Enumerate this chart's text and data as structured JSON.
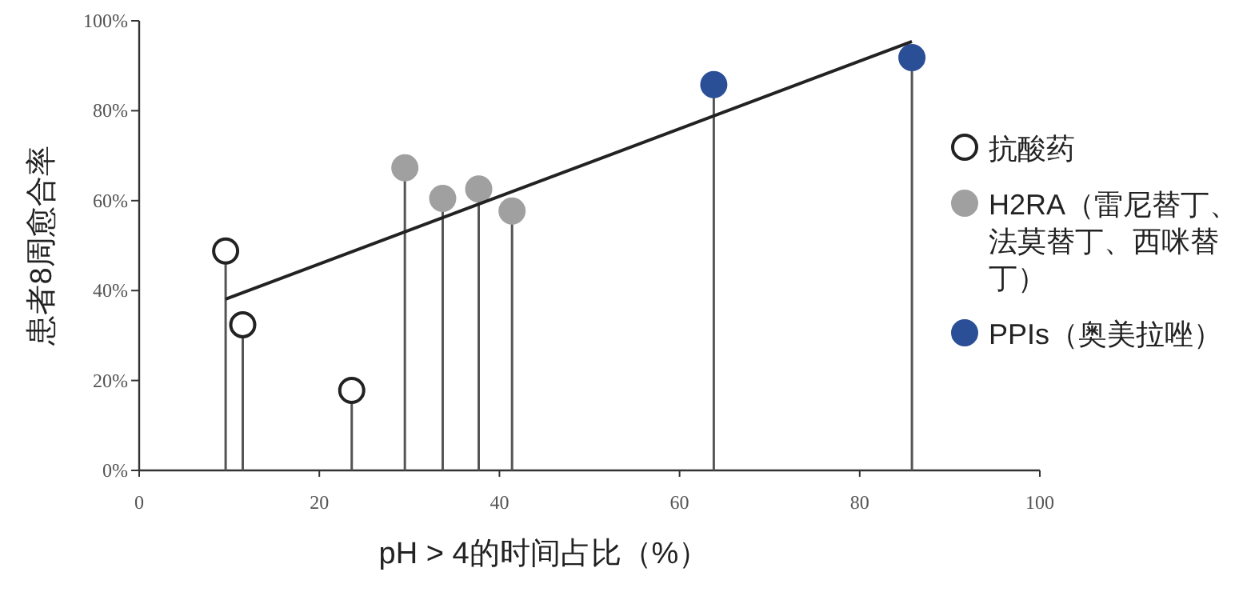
{
  "chart_data": {
    "type": "lollipop",
    "xlabel": "pH > 4的时间占比（%）",
    "ylabel": "患者8周愈合率",
    "xlim": [
      0,
      100
    ],
    "xticks": [
      0,
      20,
      40,
      60,
      80,
      100
    ],
    "ylim": [
      0,
      100
    ],
    "yticks": [
      {
        "value": 0,
        "label": "0%"
      },
      {
        "value": 20,
        "label": "20%"
      },
      {
        "value": 40,
        "label": "40%"
      },
      {
        "value": 60,
        "label": "60%"
      },
      {
        "value": 80,
        "label": "80%"
      },
      {
        "value": 100,
        "label": "100%"
      }
    ],
    "grid": false,
    "legend": "right",
    "marker": "circle",
    "series": [
      {
        "name": "抗酸药",
        "color": "#ffffff",
        "x": [
          9.6,
          11.5,
          23.6
        ],
        "values": [
          48.8,
          32.4,
          17.8
        ]
      },
      {
        "name": "H2RA（雷尼替丁、法莫替丁、西咪替丁）",
        "color": "#a0a0a0",
        "x": [
          29.5,
          33.7,
          37.7,
          41.4
        ],
        "values": [
          67.3,
          60.5,
          62.6,
          57.7
        ]
      },
      {
        "name": "PPIs（奥美拉唑）",
        "color": "#2b4f96",
        "x": [
          63.8,
          85.8
        ],
        "values": [
          85.8,
          91.8
        ]
      },
      {
        "type": "line",
        "marker": "none",
        "color": "#222222",
        "x": [
          9.6,
          85.8
        ],
        "values": [
          38.1,
          95.4
        ]
      }
    ]
  }
}
